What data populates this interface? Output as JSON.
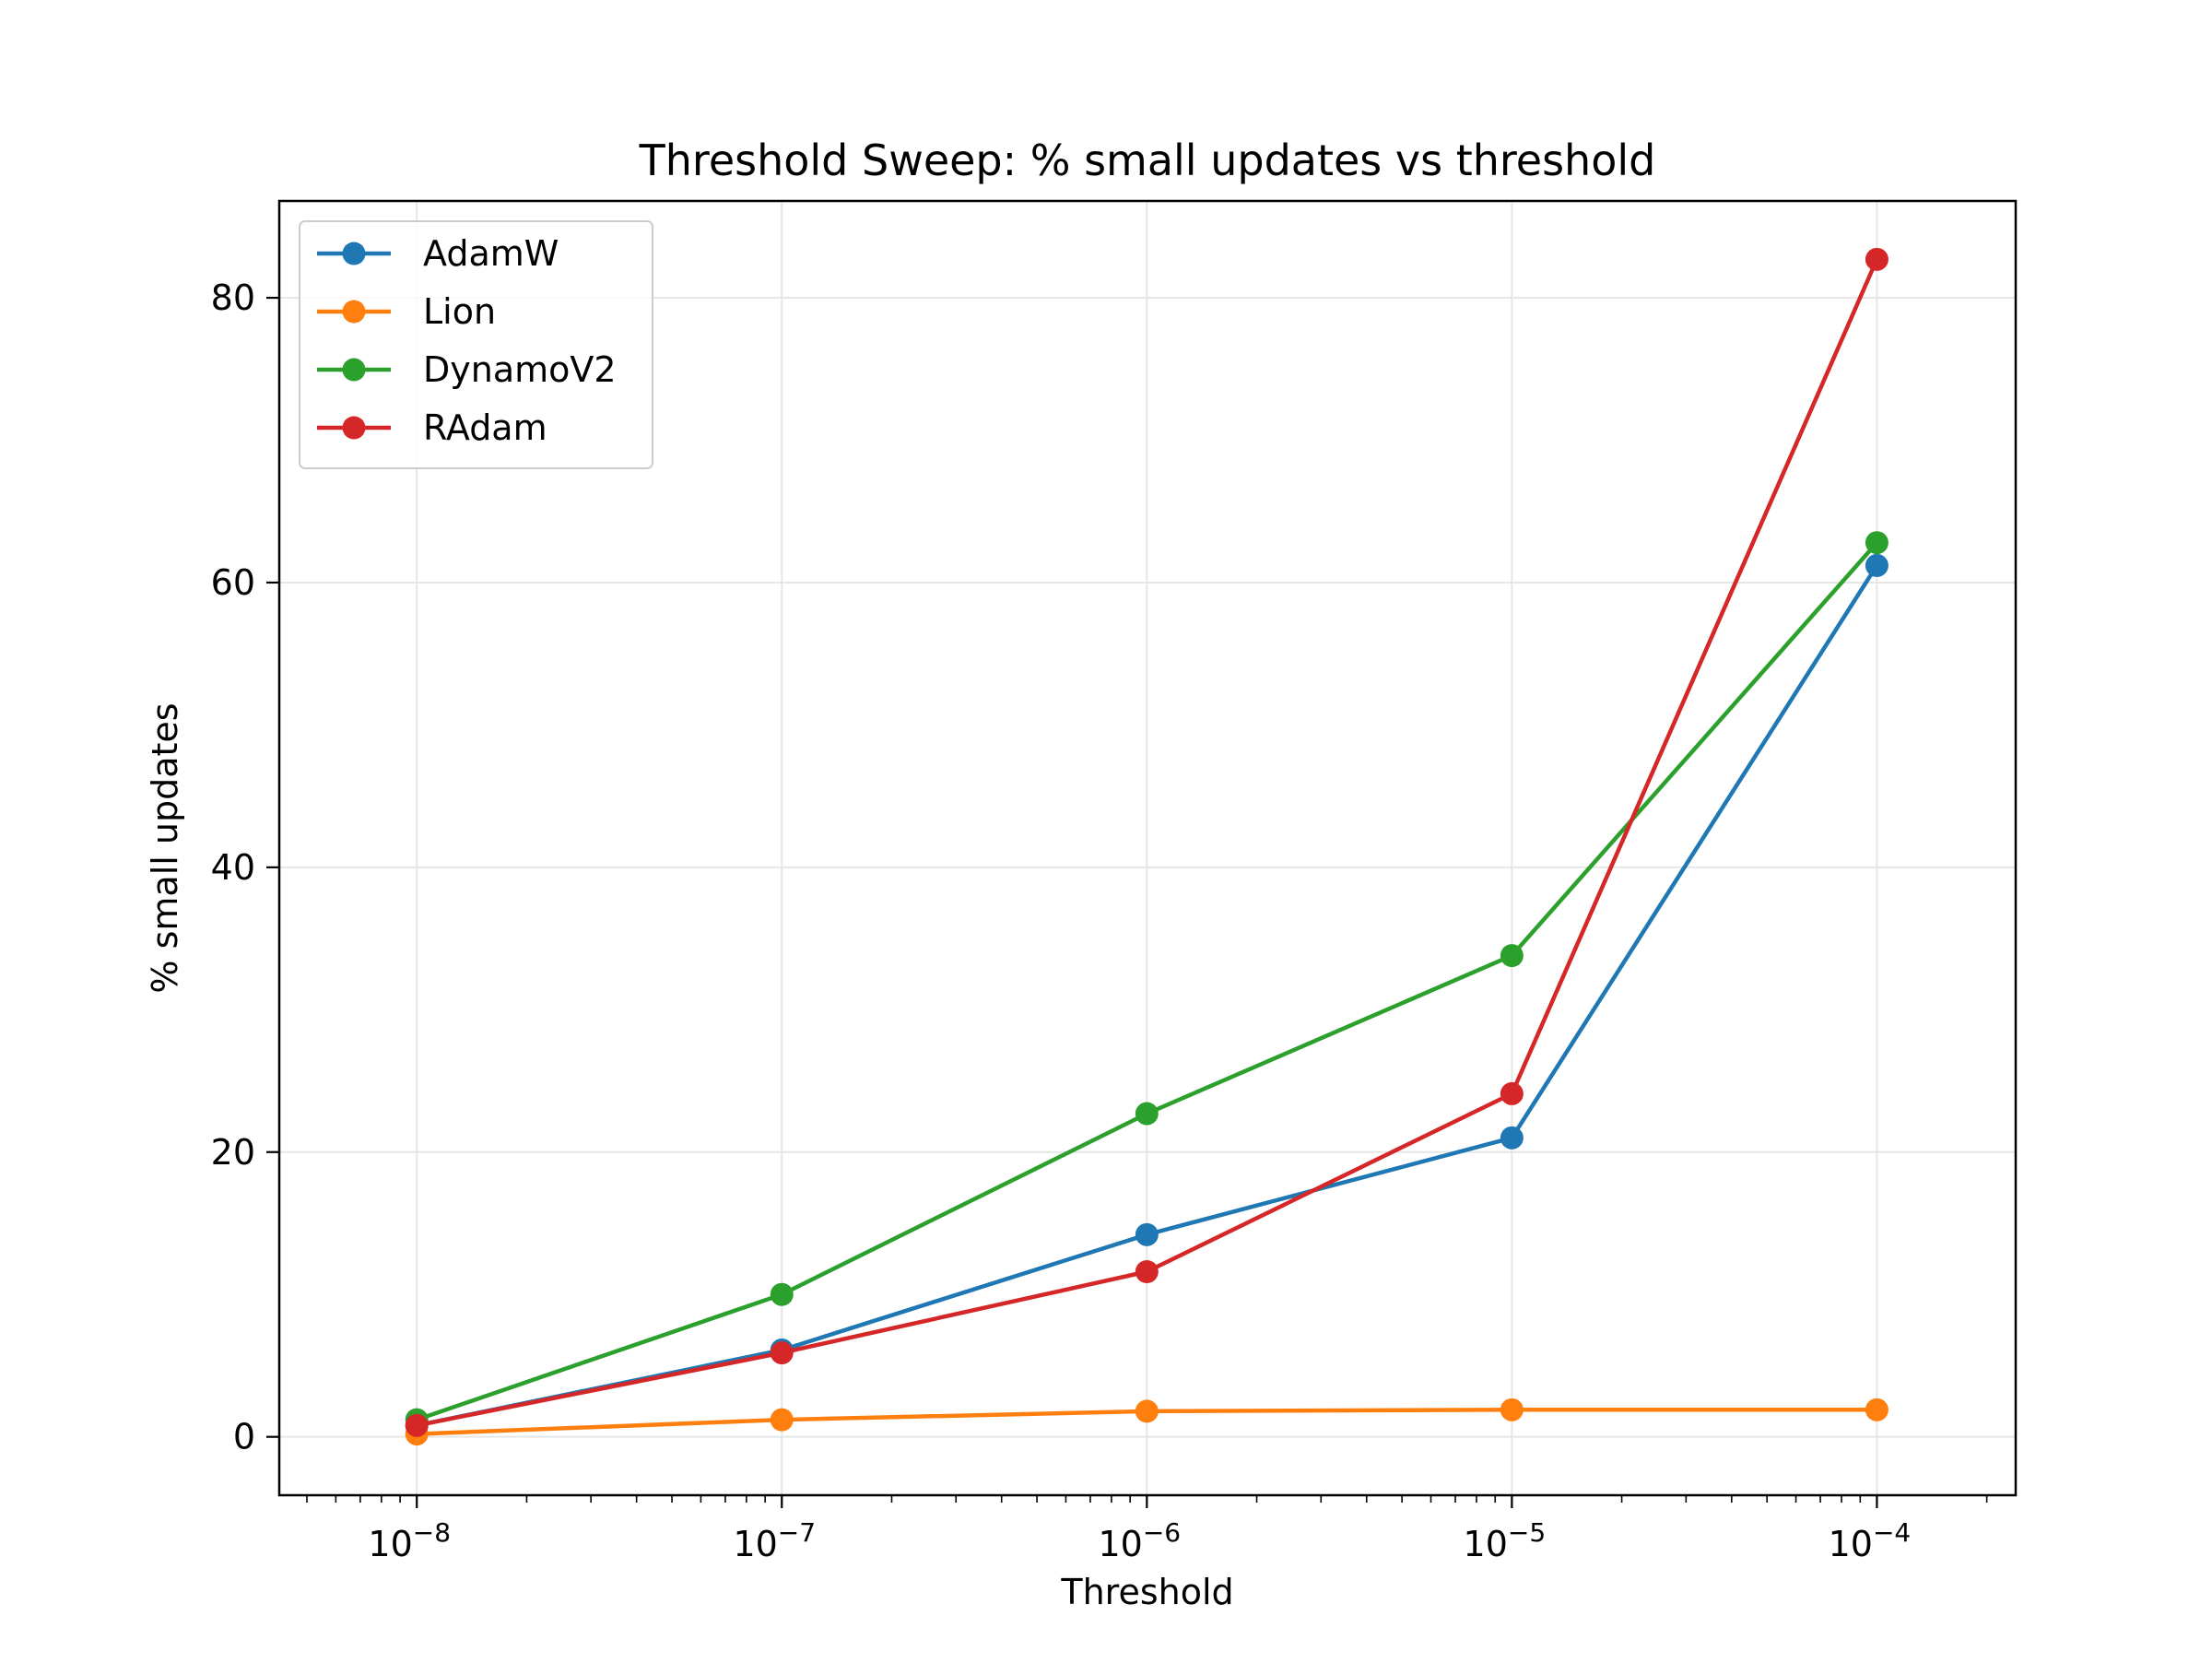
{
  "chart_data": {
    "type": "line",
    "title": "Threshold Sweep: % small updates vs threshold",
    "xlabel": "Threshold",
    "ylabel": "% small updates",
    "x_scale": "log",
    "x": [
      1e-08,
      1e-07,
      1e-06,
      1e-05,
      0.0001
    ],
    "x_tick_labels": [
      {
        "base": "10",
        "exp": "−8"
      },
      {
        "base": "10",
        "exp": "−7"
      },
      {
        "base": "10",
        "exp": "−6"
      },
      {
        "base": "10",
        "exp": "−5"
      },
      {
        "base": "10",
        "exp": "−4"
      }
    ],
    "xlim": [
      4.2e-09,
      0.00024
    ],
    "ylim": [
      -4.1,
      86.8
    ],
    "y_ticks": [
      0,
      20,
      40,
      60,
      80
    ],
    "y_tick_labels": [
      "0",
      "20",
      "40",
      "60",
      "80"
    ],
    "grid": true,
    "legend_position": "top-left",
    "series": [
      {
        "name": "AdamW",
        "color": "#1f77b4",
        "values": [
          0.8,
          6.1,
          14.2,
          21.0,
          61.2
        ]
      },
      {
        "name": "Lion",
        "color": "#ff7f0e",
        "values": [
          0.2,
          1.2,
          1.8,
          1.9,
          1.9
        ]
      },
      {
        "name": "DynamoV2",
        "color": "#2ca02c",
        "values": [
          1.2,
          10.0,
          22.7,
          33.8,
          62.8
        ]
      },
      {
        "name": "RAdam",
        "color": "#d62728",
        "values": [
          0.8,
          5.9,
          11.6,
          24.1,
          82.7
        ]
      }
    ]
  }
}
